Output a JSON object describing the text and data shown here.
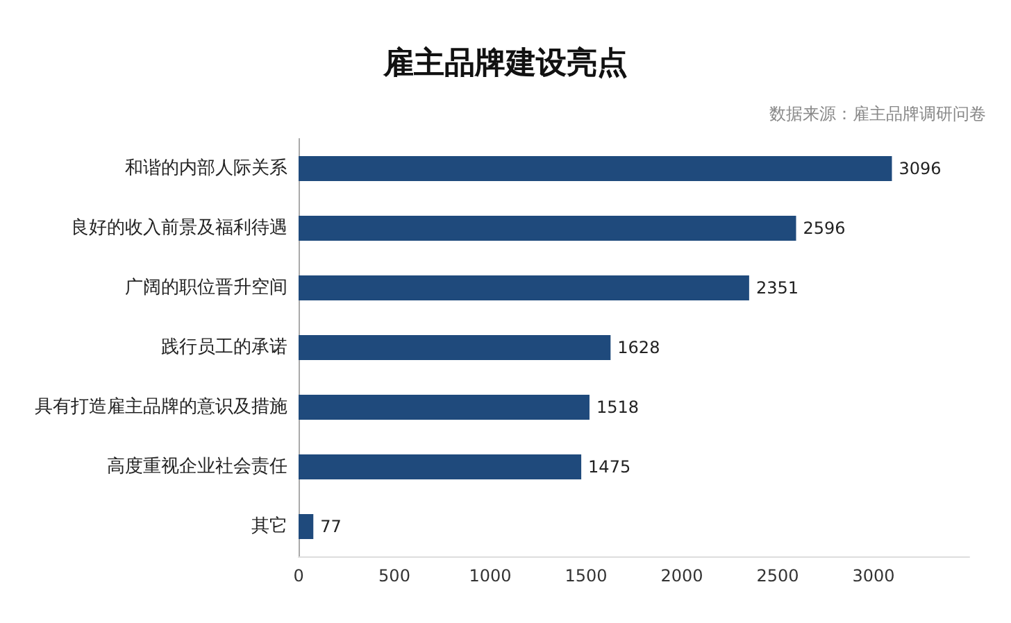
{
  "chart_data": {
    "type": "bar",
    "orientation": "horizontal",
    "title": "雇主品牌建设亮点",
    "annotations": [
      "数据来源：雇主品牌调研问卷"
    ],
    "categories": [
      "和谐的内部人际关系",
      "良好的收入前景及福利待遇",
      "广阔的职位晋升空间",
      "践行员工的承诺",
      "具有打造雇主品牌的意识及措施",
      "高度重视企业社会责任",
      "其它"
    ],
    "values": [
      3096,
      2596,
      2351,
      1628,
      1518,
      1475,
      77
    ],
    "color": "#1f4a7c",
    "xlim": [
      0,
      3500
    ],
    "xticks": [
      0,
      500,
      1000,
      1500,
      2000,
      2500,
      3000
    ],
    "grid": false,
    "data_labels": true
  }
}
